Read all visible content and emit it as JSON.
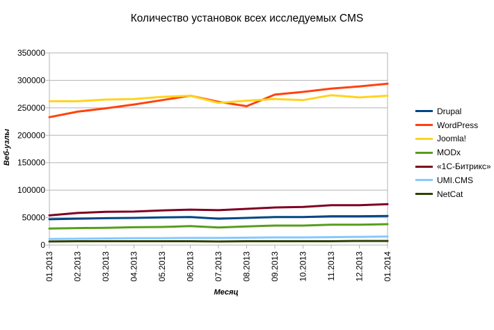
{
  "chart_data": {
    "type": "line",
    "title": "Количество установок всех исследуемых CMS",
    "xlabel": "Месяц",
    "ylabel": "Веб-узлы",
    "ylim": [
      0,
      350000
    ],
    "yticks": [
      0,
      50000,
      100000,
      150000,
      200000,
      250000,
      300000,
      350000
    ],
    "ytick_labels": [
      "0",
      "50000",
      "100000",
      "150000",
      "200000",
      "250000",
      "300000",
      "350000"
    ],
    "grid": true,
    "legend_position": "right",
    "categories": [
      "01.2013",
      "02.2013",
      "03.2013",
      "04.2013",
      "05.2013",
      "06.2013",
      "07.2013",
      "08.2013",
      "09.2013",
      "10.2013",
      "11.2013",
      "12.2013",
      "01.2014"
    ],
    "series": [
      {
        "name": "Drupal",
        "color": "#004586",
        "values": [
          47000,
          48000,
          49000,
          49500,
          50500,
          51000,
          48000,
          49500,
          51000,
          51000,
          52500,
          52500,
          53000
        ]
      },
      {
        "name": "WordPress",
        "color": "#ff420e",
        "values": [
          233000,
          243000,
          249000,
          256000,
          264000,
          272000,
          261000,
          253000,
          274000,
          279000,
          285000,
          289000,
          294000
        ]
      },
      {
        "name": "Joomla!",
        "color": "#ffd320",
        "values": [
          262000,
          262000,
          265000,
          266000,
          270000,
          272000,
          259000,
          263000,
          266000,
          264000,
          273000,
          269000,
          272000
        ]
      },
      {
        "name": "MODx",
        "color": "#579d1c",
        "values": [
          30000,
          31000,
          31500,
          32500,
          33000,
          34500,
          32000,
          34000,
          35500,
          35500,
          37000,
          37000,
          38000
        ]
      },
      {
        "name": "«1С-Битрикс»",
        "color": "#7e0021",
        "values": [
          54000,
          58500,
          60500,
          61000,
          63000,
          64500,
          63500,
          66000,
          68500,
          69500,
          72500,
          72500,
          74500
        ]
      },
      {
        "name": "UMI.CMS",
        "color": "#83caff",
        "values": [
          11000,
          11500,
          12000,
          12500,
          12500,
          13000,
          13000,
          13500,
          14000,
          14000,
          14500,
          15000,
          15500
        ]
      },
      {
        "name": "NetCat",
        "color": "#314004",
        "values": [
          6500,
          7000,
          7000,
          7000,
          7000,
          7000,
          6500,
          7000,
          7000,
          7000,
          7000,
          7500,
          7500
        ]
      }
    ]
  }
}
